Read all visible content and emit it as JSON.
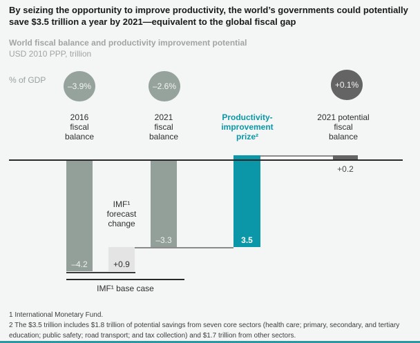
{
  "header": {
    "title": "By seizing the opportunity to improve productivity, the world’s governments could potentially save $3.5 trillion a year by 2021—equivalent to the global fiscal gap",
    "subtitle": "World fiscal balance and productivity improvement potential",
    "unit": "USD 2010 PPP, trillion"
  },
  "chart_data": {
    "type": "bar",
    "subtype": "waterfall",
    "title": "World fiscal balance and productivity improvement potential",
    "unit": "USD 2010 PPP, trillion",
    "gdp_axis_label": "% of GDP",
    "baseline_value": 0,
    "ylim": [
      -4.2,
      0.2
    ],
    "bars": [
      {
        "category": "2016 fiscal balance",
        "start": 0,
        "end": -4.2,
        "value": -4.2,
        "value_label": "–4.2",
        "pct_of_gdp": "–3.9%",
        "color_key": "sage-gray"
      },
      {
        "category": "IMF forecast change",
        "start": -4.2,
        "end": -3.3,
        "value": 0.9,
        "value_label": "+0.9",
        "pct_of_gdp": null,
        "color_key": "light-gray"
      },
      {
        "category": "2021 fiscal balance",
        "start": 0,
        "end": -3.3,
        "value": -3.3,
        "value_label": "–3.3",
        "pct_of_gdp": "–2.6%",
        "color_key": "sage-gray"
      },
      {
        "category": "Productivity-improvement prize²",
        "start": -3.3,
        "end": 0.2,
        "value": 3.5,
        "value_label": "3.5",
        "pct_of_gdp": null,
        "color_key": "teal"
      },
      {
        "category": "2021 potential fiscal balance",
        "start": 0,
        "end": 0.2,
        "value": 0.2,
        "value_label": "+0.2",
        "pct_of_gdp": "+0.1%",
        "color_key": "dark-gray"
      }
    ],
    "annotations": [
      "IMF¹ forecast change",
      "IMF¹ base case"
    ]
  },
  "column_labels": [
    [
      "2016",
      "fiscal",
      "balance"
    ],
    [
      "2021",
      "fiscal",
      "balance"
    ],
    [
      "Productivity-",
      "improvement",
      "prize²"
    ],
    [
      "2021 potential",
      "fiscal",
      "balance"
    ]
  ],
  "annotations": {
    "forecast_change": [
      "IMF¹",
      "forecast",
      "change"
    ],
    "base_case": "IMF¹ base case"
  },
  "footnotes": [
    "1 International Monetary Fund.",
    "2 The $3.5 trillion includes $1.8 trillion of potential savings from seven core sectors (health care; primary, secondary, and tertiary education; public safety; road transport; and tax collection) and $1.7 trillion from other sectors."
  ],
  "colors": {
    "background": "#f4f5f5",
    "sage_gray": "#939f99",
    "light_gray": "#e4e4e4",
    "teal": "#0b97a7",
    "dark_gray": "#646464",
    "axis": "#282828",
    "muted_text": "#a3a3a3",
    "bottom_rule": "#2d96a3"
  }
}
